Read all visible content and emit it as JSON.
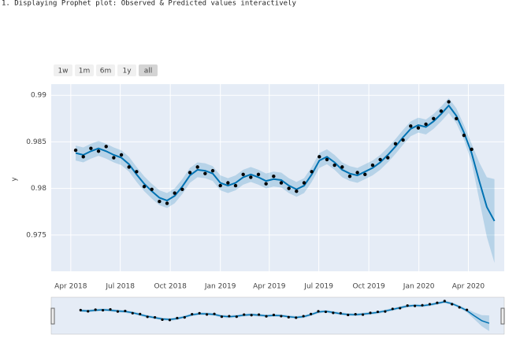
{
  "heading": "1. Displaying Prophet plot: Observed & Predicted values interactively",
  "range_buttons": [
    "1w",
    "1m",
    "6m",
    "1y",
    "all"
  ],
  "active_button": 4,
  "chart_data": {
    "type": "line",
    "ylabel": "y",
    "x": [
      "2018-04-10",
      "2018-04-24",
      "2018-05-08",
      "2018-05-22",
      "2018-06-05",
      "2018-06-19",
      "2018-07-03",
      "2018-07-17",
      "2018-07-31",
      "2018-08-14",
      "2018-08-28",
      "2018-09-11",
      "2018-09-25",
      "2018-10-09",
      "2018-10-23",
      "2018-11-06",
      "2018-11-20",
      "2018-12-04",
      "2018-12-18",
      "2019-01-01",
      "2019-01-15",
      "2019-01-29",
      "2019-02-12",
      "2019-02-26",
      "2019-03-12",
      "2019-03-26",
      "2019-04-09",
      "2019-04-23",
      "2019-05-07",
      "2019-05-21",
      "2019-06-04",
      "2019-06-18",
      "2019-07-02",
      "2019-07-16",
      "2019-07-30",
      "2019-08-13",
      "2019-08-27",
      "2019-09-10",
      "2019-09-24",
      "2019-10-08",
      "2019-10-22",
      "2019-11-05",
      "2019-11-19",
      "2019-12-03",
      "2019-12-17",
      "2019-12-31",
      "2020-01-14",
      "2020-01-28",
      "2020-02-11",
      "2020-02-25",
      "2020-03-10",
      "2020-03-24",
      "2020-04-07",
      "2020-04-21",
      "2020-05-05",
      "2020-05-19"
    ],
    "series": [
      {
        "color": "#0072b2",
        "values": [
          0.9838,
          0.9836,
          0.984,
          0.9843,
          0.984,
          0.9836,
          0.9833,
          0.9826,
          0.9815,
          0.9805,
          0.9797,
          0.979,
          0.9787,
          0.9792,
          0.9802,
          0.9814,
          0.982,
          0.9819,
          0.9816,
          0.9806,
          0.9803,
          0.9806,
          0.9812,
          0.9815,
          0.9812,
          0.9808,
          0.981,
          0.9809,
          0.9803,
          0.9799,
          0.9803,
          0.9815,
          0.983,
          0.9834,
          0.9828,
          0.982,
          0.9816,
          0.9814,
          0.9818,
          0.9822,
          0.9828,
          0.9836,
          0.9845,
          0.9855,
          0.9864,
          0.9868,
          0.9866,
          0.9872,
          0.988,
          0.9889,
          0.9878,
          0.986,
          0.9838,
          0.9808,
          0.978,
          0.9765
        ]
      }
    ],
    "band": {
      "color": "rgba(0,114,178,0.2)",
      "lower": [
        0.983,
        0.9828,
        0.9832,
        0.9835,
        0.9832,
        0.9828,
        0.9825,
        0.9818,
        0.9807,
        0.9797,
        0.9789,
        0.9782,
        0.9779,
        0.9784,
        0.9794,
        0.9806,
        0.9812,
        0.9811,
        0.9808,
        0.9798,
        0.9795,
        0.9798,
        0.9804,
        0.9807,
        0.9804,
        0.98,
        0.9802,
        0.9801,
        0.9795,
        0.9791,
        0.9795,
        0.9807,
        0.9822,
        0.9826,
        0.982,
        0.9812,
        0.9808,
        0.9806,
        0.981,
        0.9814,
        0.982,
        0.9828,
        0.9837,
        0.9847,
        0.9856,
        0.986,
        0.9858,
        0.9864,
        0.9872,
        0.9881,
        0.987,
        0.9852,
        0.9828,
        0.9788,
        0.9748,
        0.972
      ],
      "upper": [
        0.9846,
        0.9844,
        0.9848,
        0.9851,
        0.9848,
        0.9844,
        0.9841,
        0.9834,
        0.9823,
        0.9813,
        0.9805,
        0.9798,
        0.9795,
        0.98,
        0.981,
        0.9822,
        0.9828,
        0.9827,
        0.9824,
        0.9814,
        0.9811,
        0.9814,
        0.982,
        0.9823,
        0.982,
        0.9816,
        0.9818,
        0.9817,
        0.9811,
        0.9807,
        0.9811,
        0.9823,
        0.9838,
        0.9842,
        0.9836,
        0.9828,
        0.9824,
        0.9822,
        0.9826,
        0.983,
        0.9836,
        0.9844,
        0.9853,
        0.9863,
        0.9872,
        0.9876,
        0.9874,
        0.988,
        0.9888,
        0.9897,
        0.9886,
        0.9868,
        0.9848,
        0.9828,
        0.9812,
        0.981
      ]
    },
    "observed": {
      "color": "#000000",
      "values": [
        0.9841,
        0.9834,
        0.9843,
        0.984,
        0.9845,
        0.9833,
        0.9836,
        0.9823,
        0.9818,
        0.9802,
        0.9799,
        0.9786,
        0.9784,
        0.9795,
        0.9799,
        0.9817,
        0.9823,
        0.9816,
        0.9819,
        0.9803,
        0.9806,
        0.9803,
        0.9815,
        0.9812,
        0.9815,
        0.9805,
        0.9813,
        0.9806,
        0.98,
        0.9797,
        0.9806,
        0.9818,
        0.9834,
        0.9831,
        0.9825,
        0.9823,
        0.9813,
        0.9817,
        0.9815,
        0.9825,
        0.9831,
        0.9833,
        0.9848,
        0.9852,
        0.9867,
        0.9865,
        0.9869,
        0.9875,
        0.9883,
        0.9893,
        0.9875,
        0.9857,
        0.9842,
        null,
        null,
        null
      ]
    },
    "xlim": [
      "2018-02-24",
      "2020-06-06"
    ],
    "xticks": [
      {
        "value": "2018-04-01",
        "label": "Apr 2018"
      },
      {
        "value": "2018-07-01",
        "label": "Jul 2018"
      },
      {
        "value": "2018-10-01",
        "label": "Oct 2018"
      },
      {
        "value": "2019-01-01",
        "label": "Jan 2019"
      },
      {
        "value": "2019-04-01",
        "label": "Apr 2019"
      },
      {
        "value": "2019-07-01",
        "label": "Jul 2019"
      },
      {
        "value": "2019-10-01",
        "label": "Oct 2019"
      },
      {
        "value": "2020-01-01",
        "label": "Jan 2020"
      },
      {
        "value": "2020-04-01",
        "label": "Apr 2020"
      }
    ],
    "ylim": [
      0.9711,
      0.9912
    ],
    "yticks": [
      0.975,
      0.98,
      0.985,
      0.99
    ],
    "grid": true,
    "rangeslider": true
  }
}
